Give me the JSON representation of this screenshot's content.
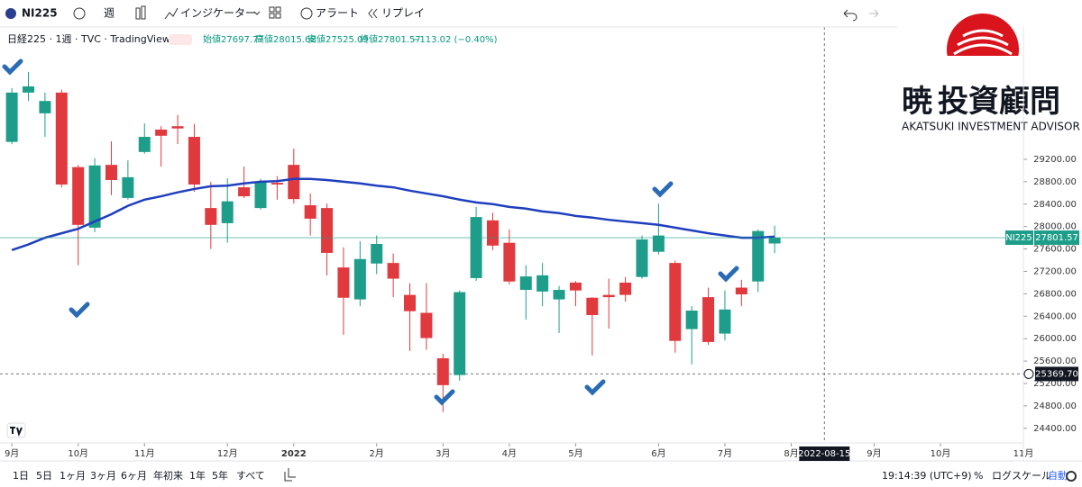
{
  "toolbar": {
    "symbol": "NI225",
    "interval": "週",
    "indicators": "インジケーター",
    "alert": "アラート",
    "replay": "リプレイ"
  },
  "legend": {
    "title": "日経225 · 1週 · TVC · TradingView",
    "ohlc": [
      "始値27697.77",
      "高値28015.68",
      "安値27525.09",
      "終値27801.57",
      "−113.02 (−0.40%)"
    ]
  },
  "logo": {
    "mark": "暁",
    "name": "投資顧問",
    "tagline": "AKATSUKI INVESTMENT ADVISOR"
  },
  "bottom_bar": {
    "ranges": [
      "1日",
      "5日",
      "1ヶ月",
      "3ヶ月",
      "6ヶ月",
      "年初来",
      "1年",
      "5年",
      "すべて"
    ],
    "clock": "19:14:39 (UTC+9)",
    "percent": "%",
    "log_scale": "ログスケール",
    "auto": "自動"
  },
  "chart_data": {
    "type": "candlestick",
    "symbol": "NI225",
    "x": [
      "2021-09-06",
      "2021-09-13",
      "2021-09-20",
      "2021-09-27",
      "2021-10-04",
      "2021-10-11",
      "2021-10-18",
      "2021-10-25",
      "2021-11-01",
      "2021-11-08",
      "2021-11-15",
      "2021-11-22",
      "2021-11-29",
      "2021-12-06",
      "2021-12-13",
      "2021-12-20",
      "2021-12-27",
      "2022-01-03",
      "2022-01-10",
      "2022-01-17",
      "2022-01-24",
      "2022-01-31",
      "2022-02-07",
      "2022-02-14",
      "2022-02-21",
      "2022-02-28",
      "2022-03-07",
      "2022-03-14",
      "2022-03-21",
      "2022-03-28",
      "2022-04-04",
      "2022-04-11",
      "2022-04-18",
      "2022-04-25",
      "2022-05-02",
      "2022-05-09",
      "2022-05-16",
      "2022-05-23",
      "2022-05-30",
      "2022-06-06",
      "2022-06-13",
      "2022-06-20",
      "2022-06-27",
      "2022-07-04",
      "2022-07-11",
      "2022-07-18",
      "2022-07-25"
    ],
    "open": [
      29510,
      30390,
      30020,
      30390,
      29060,
      27980,
      29100,
      28510,
      29330,
      29730,
      29790,
      29600,
      28330,
      28060,
      28700,
      28330,
      28780,
      29100,
      28380,
      28330,
      27270,
      26700,
      27340,
      27350,
      26780,
      26460,
      25650,
      25350,
      27080,
      28110,
      27710,
      26870,
      26840,
      26700,
      27000,
      26730,
      26780,
      27000,
      27100,
      27550,
      27350,
      26170,
      26740,
      26090,
      26910,
      27020,
      27697.77
    ],
    "high": [
      30470,
      30760,
      30390,
      30440,
      29100,
      29220,
      29520,
      29180,
      29840,
      29790,
      29990,
      29830,
      28800,
      28860,
      29070,
      28850,
      28900,
      29390,
      28590,
      28410,
      27630,
      27740,
      27840,
      27520,
      26990,
      26990,
      25730,
      26860,
      28350,
      28250,
      27950,
      27310,
      27350,
      26940,
      27030,
      26740,
      27070,
      27100,
      27840,
      28410,
      27390,
      26580,
      26910,
      26860,
      27050,
      27950,
      28015.68
    ],
    "low": [
      29470,
      30240,
      29600,
      28700,
      27310,
      27900,
      28560,
      28480,
      29300,
      29070,
      29470,
      28620,
      27600,
      27710,
      28510,
      28300,
      28480,
      28410,
      27840,
      27130,
      26070,
      26580,
      27150,
      26740,
      25780,
      25800,
      24690,
      25250,
      27030,
      27580,
      26970,
      26340,
      26580,
      26100,
      26580,
      25700,
      26180,
      26660,
      27070,
      27500,
      25750,
      25540,
      25890,
      25970,
      26580,
      26830,
      27525.09
    ],
    "close": [
      30390,
      30500,
      30240,
      28750,
      28030,
      29090,
      28830,
      28880,
      29600,
      29620,
      29750,
      28750,
      28030,
      28450,
      28540,
      28800,
      28750,
      28490,
      28140,
      27530,
      26730,
      27420,
      27690,
      27070,
      26490,
      26010,
      25170,
      26830,
      28170,
      27660,
      27020,
      27110,
      27130,
      26870,
      26860,
      26420,
      26740,
      26780,
      27770,
      27840,
      25960,
      26500,
      25940,
      26520,
      26790,
      27920,
      27801.57
    ],
    "up_color": "#1e9e8a",
    "down_color": "#e0393e",
    "ma": {
      "color": "#1f3fbf",
      "values": [
        27580,
        27680,
        27800,
        27880,
        27960,
        28090,
        28220,
        28370,
        28480,
        28540,
        28610,
        28670,
        28720,
        28730,
        28770,
        28800,
        28810,
        28850,
        28850,
        28830,
        28800,
        28770,
        28730,
        28700,
        28640,
        28590,
        28540,
        28480,
        28430,
        28400,
        28350,
        28320,
        28270,
        28240,
        28190,
        28160,
        28120,
        28090,
        28060,
        28030,
        27980,
        27930,
        27880,
        27840,
        27800,
        27800,
        27820
      ]
    },
    "xlim": [
      "2021-09-01",
      "2022-11-07"
    ],
    "xticks": [
      {
        "value": "2021-09-06",
        "label": "9月"
      },
      {
        "value": "2021-10-04",
        "label": "10月"
      },
      {
        "value": "2021-11-01",
        "label": "11月"
      },
      {
        "value": "2021-12-06",
        "label": "12月"
      },
      {
        "value": "2022-01-03",
        "label": "2022"
      },
      {
        "value": "2022-02-07",
        "label": "2月"
      },
      {
        "value": "2022-03-07",
        "label": "3月"
      },
      {
        "value": "2022-04-04",
        "label": "4月"
      },
      {
        "value": "2022-05-02",
        "label": "5月"
      },
      {
        "value": "2022-06-06",
        "label": "6月"
      },
      {
        "value": "2022-07-04",
        "label": "7月"
      },
      {
        "value": "2022-08-01",
        "label": "8月"
      },
      {
        "value": "2022-09-05",
        "label": "9月"
      },
      {
        "value": "2022-10-03",
        "label": "10月"
      },
      {
        "value": "2022-11-07",
        "label": "11月"
      }
    ],
    "ylim": [
      24140,
      31560
    ],
    "yticks": [
      {
        "value": 24400,
        "label": "24400.00"
      },
      {
        "value": 24800,
        "label": "24800.00"
      },
      {
        "value": 25200,
        "label": "25200.00"
      },
      {
        "value": 25600,
        "label": "25600.00"
      },
      {
        "value": 26000,
        "label": "26000.00"
      },
      {
        "value": 26400,
        "label": "26400.00"
      },
      {
        "value": 26800,
        "label": "26800.00"
      },
      {
        "value": 27200,
        "label": "27200.00"
      },
      {
        "value": 27600,
        "label": "27600.00"
      },
      {
        "value": 28000,
        "label": "28000.00"
      },
      {
        "value": 28400,
        "label": "28400.00"
      },
      {
        "value": 28800,
        "label": "28800.00"
      },
      {
        "value": 29200,
        "label": "29200.00"
      }
    ],
    "price_line": {
      "value": 25369.7,
      "label": "25369.70"
    },
    "crosshair": "2022-08-15"
  }
}
